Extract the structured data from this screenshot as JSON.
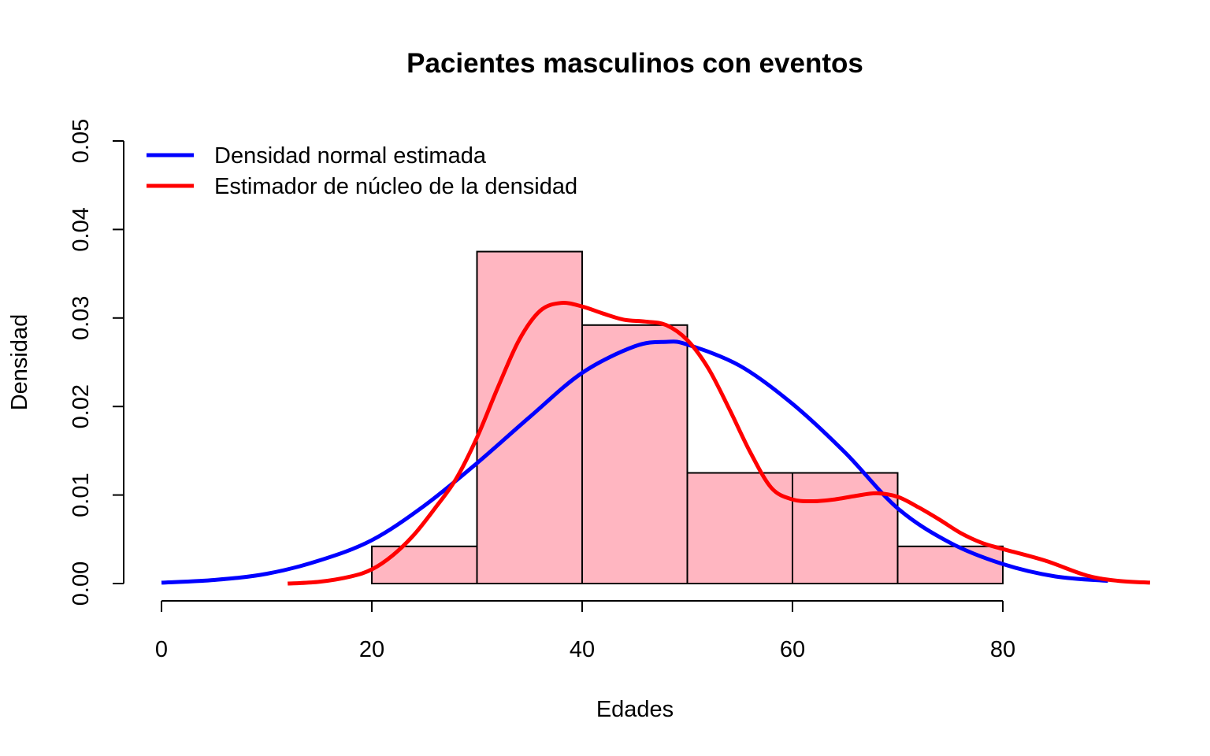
{
  "chart_data": {
    "type": "bar",
    "title": "Pacientes masculinos con eventos",
    "xlabel": "Edades",
    "ylabel": "Densidad",
    "xlim": [
      0,
      94
    ],
    "ylim": [
      0,
      0.05
    ],
    "x_ticks": [
      "0",
      "20",
      "40",
      "60",
      "80"
    ],
    "y_ticks": [
      "0.00",
      "0.01",
      "0.02",
      "0.03",
      "0.04",
      "0.05"
    ],
    "histogram": {
      "fill": "#FFB6C1",
      "bins": [
        {
          "from": 20,
          "to": 30,
          "density": 0.0042
        },
        {
          "from": 30,
          "to": 40,
          "density": 0.0375
        },
        {
          "from": 40,
          "to": 50,
          "density": 0.0292
        },
        {
          "from": 50,
          "to": 60,
          "density": 0.0125
        },
        {
          "from": 60,
          "to": 70,
          "density": 0.0125
        },
        {
          "from": 70,
          "to": 80,
          "density": 0.0042
        }
      ]
    },
    "series": [
      {
        "name": "Densidad normal estimada",
        "color": "#0000FF",
        "x": [
          0,
          5,
          10,
          15,
          20,
          25,
          30,
          35,
          40,
          45,
          48,
          50,
          55,
          60,
          65,
          70,
          75,
          80,
          85,
          90
        ],
        "y": [
          0.0001,
          0.0004,
          0.0011,
          0.0026,
          0.0049,
          0.0088,
          0.0136,
          0.0188,
          0.0238,
          0.0268,
          0.0273,
          0.027,
          0.0246,
          0.0203,
          0.0148,
          0.0085,
          0.0046,
          0.0022,
          0.0008,
          0.0003
        ]
      },
      {
        "name": "Estimador de núcleo de la densidad",
        "color": "#FF0000",
        "x": [
          12,
          15,
          18,
          20,
          22,
          24,
          26,
          28,
          30,
          32,
          34,
          36,
          38,
          40,
          42,
          44,
          46,
          48,
          50,
          52,
          54,
          56,
          58,
          60,
          62,
          64,
          66,
          68,
          70,
          72,
          74,
          76,
          78,
          80,
          84,
          88,
          91,
          94
        ],
        "y": [
          0.0,
          0.0002,
          0.0008,
          0.0016,
          0.0032,
          0.0055,
          0.0085,
          0.0118,
          0.0165,
          0.0222,
          0.0275,
          0.0308,
          0.0317,
          0.0313,
          0.0305,
          0.0298,
          0.0296,
          0.0292,
          0.0275,
          0.0243,
          0.0197,
          0.0148,
          0.0108,
          0.0095,
          0.0093,
          0.0095,
          0.0099,
          0.0102,
          0.0098,
          0.0086,
          0.0072,
          0.0057,
          0.0046,
          0.0039,
          0.0026,
          0.0009,
          0.0003,
          0.0001
        ]
      }
    ],
    "legend": {
      "position": "top-left",
      "entries": [
        "Densidad normal estimada",
        "Estimador de núcleo de la densidad"
      ]
    }
  }
}
